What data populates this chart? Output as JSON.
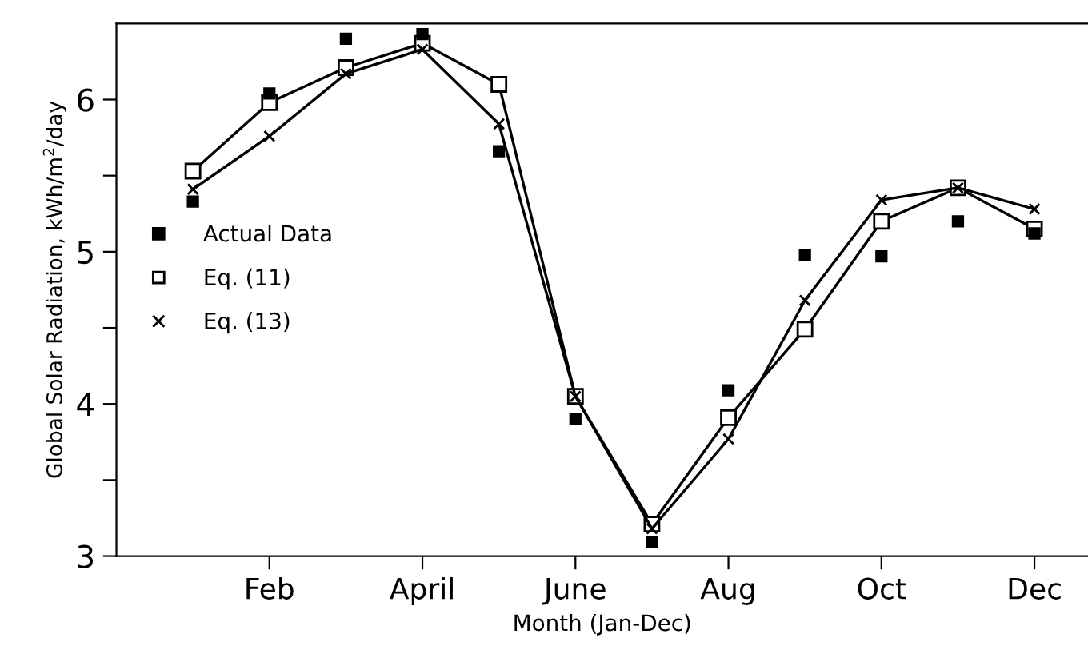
{
  "chart_data": {
    "type": "line",
    "xlabel": "Month (Jan-Dec)",
    "ylabel": "Global Solar Radiation, kWh/m$^{2}$/day",
    "categories": [
      null,
      "Feb",
      null,
      "April",
      null,
      "June",
      null,
      "Aug",
      null,
      "Oct",
      null,
      "Dec"
    ],
    "series": [
      {
        "name": "Actual Data",
        "type": "scatter",
        "marker": "square",
        "color": "#000000",
        "values": [
          5.33,
          6.04,
          6.4,
          6.43,
          5.66,
          3.9,
          3.09,
          4.09,
          4.98,
          4.97,
          5.2,
          5.12
        ]
      },
      {
        "name": "Eq. (11)",
        "marker": "square",
        "color": "#000000",
        "values": [
          5.53,
          5.98,
          6.21,
          6.37,
          6.1,
          4.05,
          3.21,
          3.91,
          4.49,
          5.2,
          5.42,
          5.15
        ]
      },
      {
        "name": "Eq. (13)",
        "marker": "cross",
        "color": "#000000",
        "values": [
          5.41,
          5.76,
          6.17,
          6.33,
          5.84,
          4.05,
          3.18,
          3.77,
          4.68,
          5.34,
          5.42,
          5.28
        ]
      }
    ],
    "ylim": [
      3,
      6.5
    ],
    "yticks": [
      3,
      {
        "value": 3.5,
        "label": null
      },
      4,
      {
        "value": 4.5,
        "label": null
      },
      5,
      {
        "value": 5.5,
        "label": null
      },
      6
    ],
    "legend": "center left",
    "grid": false,
    "line_style": "solid"
  }
}
